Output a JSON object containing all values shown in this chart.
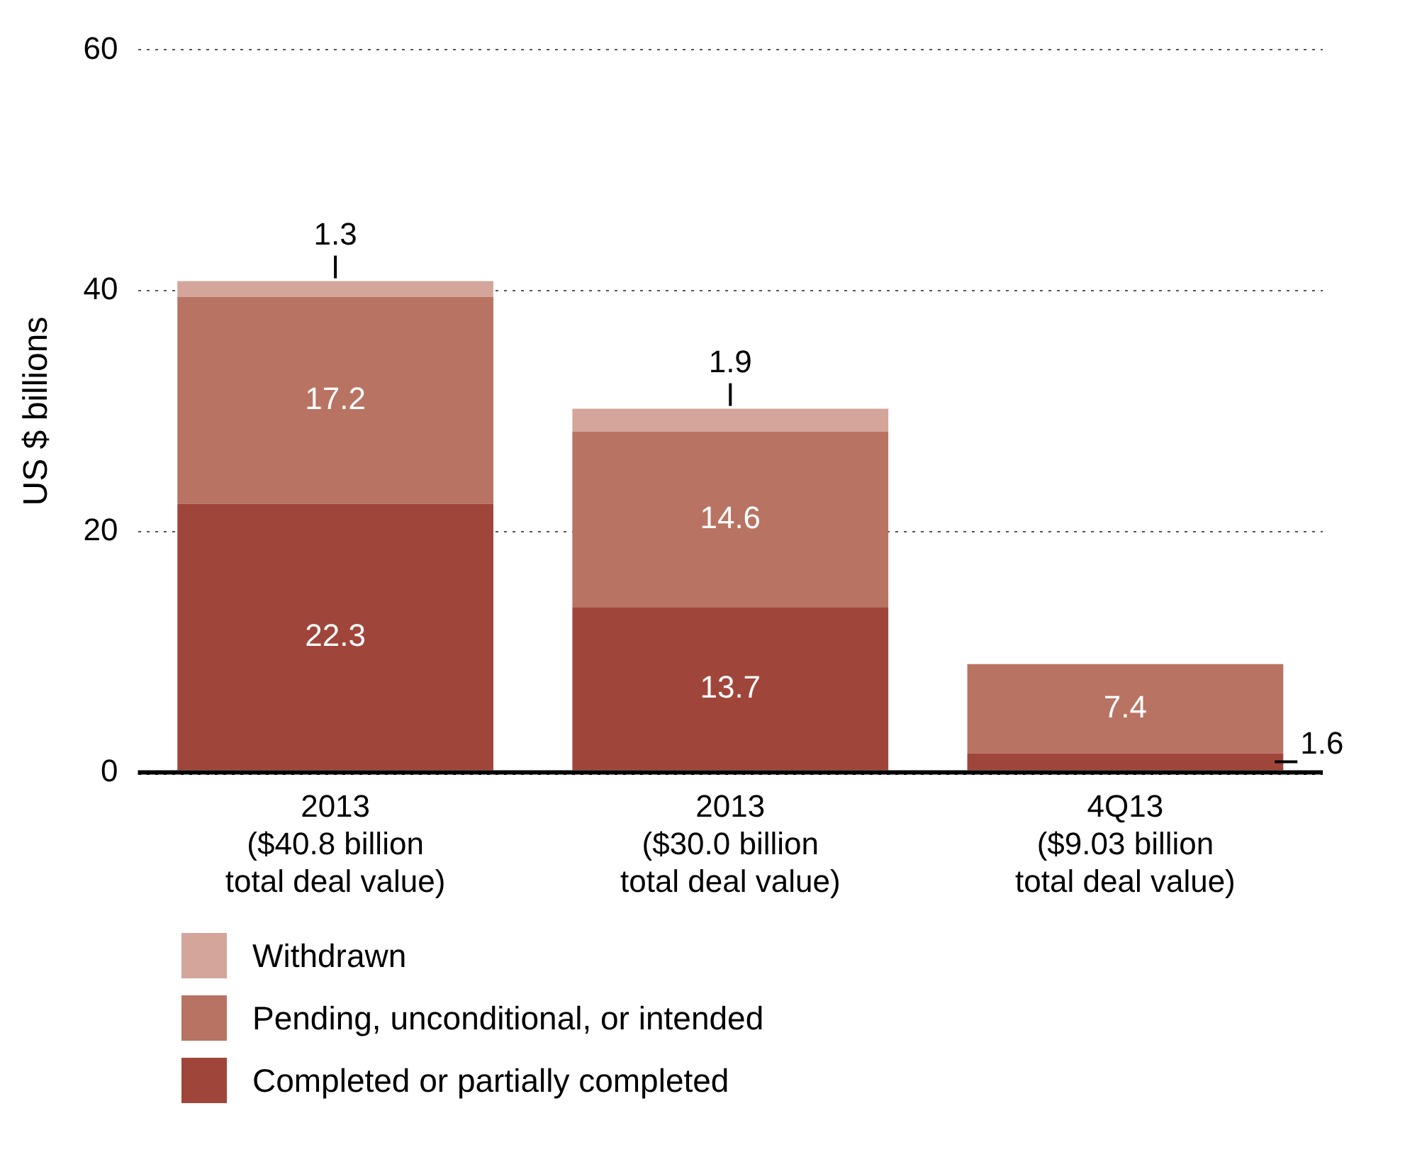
{
  "chart_data": {
    "type": "bar",
    "stacked": true,
    "ylabel": "US $ billions",
    "categories": [
      "2013\n($40.8 billion\ntotal deal value)",
      "2013\n($30.0 billion\ntotal deal value)",
      "4Q13\n($9.03 billion\ntotal deal value)"
    ],
    "series": [
      {
        "name": "Completed or partially completed",
        "color": "#a0453a",
        "values": [
          22.3,
          13.7,
          1.6
        ]
      },
      {
        "name": "Pending, unconditional, or intended",
        "color": "#b87362",
        "values": [
          17.2,
          14.6,
          7.4
        ]
      },
      {
        "name": "Withdrawn",
        "color": "#d4a59a",
        "values": [
          1.3,
          1.9,
          null
        ]
      }
    ],
    "ylim": [
      0,
      60
    ],
    "yticks": [
      0,
      20,
      40,
      60
    ],
    "grid": "y",
    "legend": "bottom",
    "data_labels": true
  }
}
